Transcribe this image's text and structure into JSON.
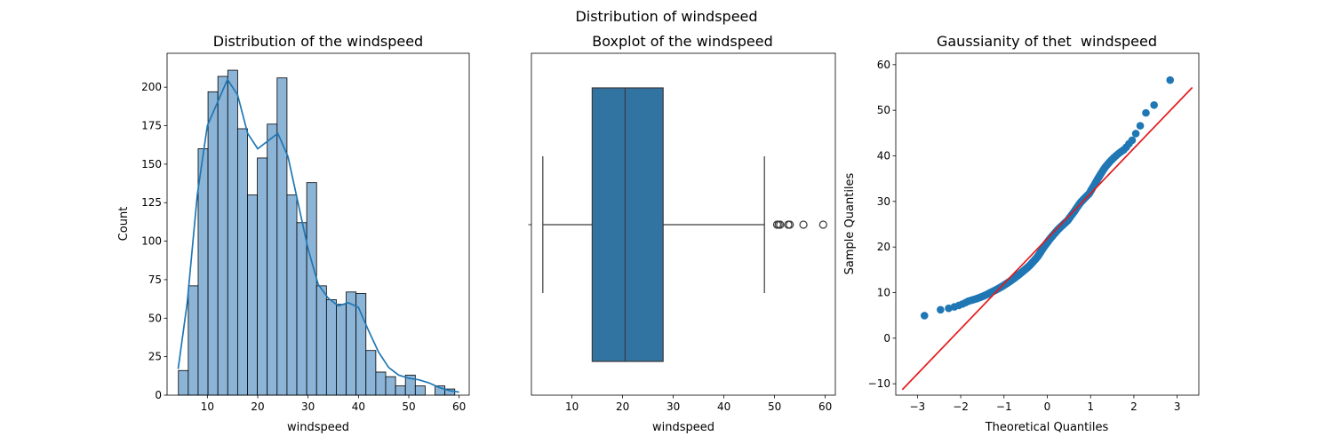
{
  "suptitle": "Distribution of windspeed",
  "chart_data": [
    {
      "type": "histogram",
      "title": "Distribution of the windspeed",
      "xlabel": "windspeed",
      "ylabel": "Count",
      "xlim": [
        2.0,
        62.0
      ],
      "ylim": [
        0,
        222
      ],
      "xticks": [
        10,
        20,
        30,
        40,
        50,
        60
      ],
      "yticks": [
        0,
        25,
        50,
        75,
        100,
        125,
        150,
        175,
        200
      ],
      "bin_start": 4.25,
      "bin_width": 1.96,
      "counts": [
        16,
        71,
        160,
        197,
        207,
        211,
        173,
        130,
        154,
        176,
        206,
        130,
        112,
        138,
        71,
        62,
        59,
        67,
        66,
        29,
        15,
        12,
        6,
        13,
        6,
        0,
        6,
        4
      ],
      "kde": {
        "x": [
          4.2,
          6,
          8,
          10,
          12,
          14,
          16,
          18,
          20,
          22,
          24,
          26,
          28,
          30,
          32,
          34,
          36,
          38,
          40,
          42,
          44,
          46,
          48,
          50,
          52,
          54,
          56,
          58,
          60
        ],
        "y": [
          17,
          60,
          130,
          175,
          190,
          205,
          195,
          170,
          160,
          165,
          170,
          155,
          125,
          95,
          72,
          63,
          58,
          60,
          57,
          42,
          28,
          18,
          13,
          11,
          10,
          8,
          5,
          3,
          2
        ]
      },
      "bar_color": "#8cb4d7",
      "line_color": "#1f77b4"
    },
    {
      "type": "boxplot",
      "title": "Boxplot of the windspeed",
      "xlabel": "windspeed",
      "xlim": [
        2.0,
        62.0
      ],
      "xticks": [
        10,
        20,
        30,
        40,
        50,
        60
      ],
      "whisker_low": 4.25,
      "q1": 14.0,
      "median": 20.5,
      "q3": 28.0,
      "whisker_high": 48.0,
      "outliers": [
        50.5,
        50.8,
        51.1,
        52.7,
        53.0,
        55.7,
        59.6
      ],
      "box_color": "#3274a1",
      "line_color": "#3a3a3a"
    },
    {
      "type": "scatter",
      "title": "Gaussianity of thet  windspeed",
      "xlabel": "Theoretical Quantiles",
      "ylabel": "Sample Quantiles",
      "xlim": [
        -3.5,
        3.5
      ],
      "ylim": [
        -12.5,
        62.5
      ],
      "xticks": [
        -3,
        -2,
        -1,
        0,
        1,
        2,
        3
      ],
      "yticks": [
        -10,
        0,
        10,
        20,
        30,
        40,
        50,
        60
      ],
      "reference_line": {
        "x": [
          -3.35,
          3.35
        ],
        "y": [
          -11.3,
          55.0
        ]
      },
      "marker_color": "#1f77b4",
      "line_color": "#e31a1c"
    }
  ]
}
